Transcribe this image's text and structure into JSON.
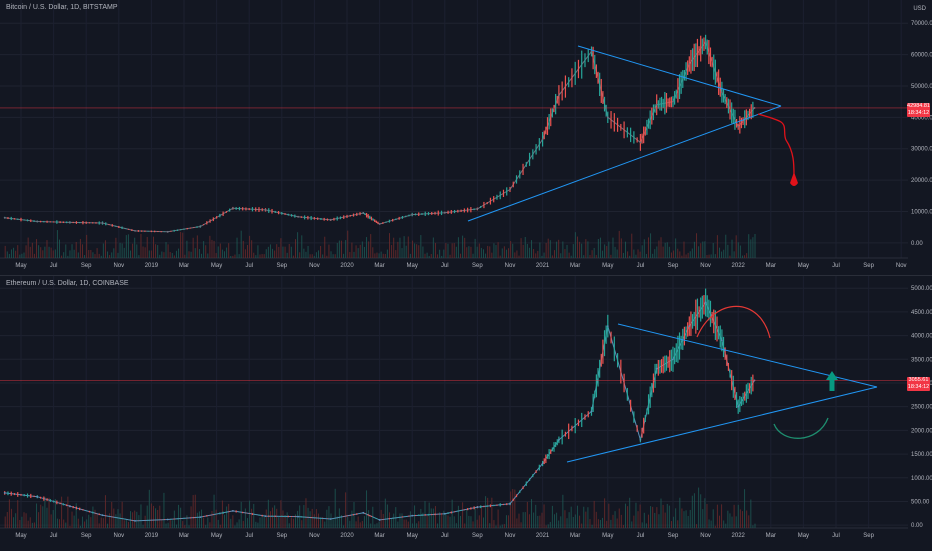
{
  "btc": {
    "title": "Bitcoin / U.S. Dollar, 1D, BITSTAMP",
    "unit": "USD",
    "price_ticks": [
      "70000.00",
      "60000.00",
      "50000.00",
      "40000.00",
      "30000.00",
      "20000.00",
      "10000.00",
      "0.00"
    ],
    "current_price": "42984.81",
    "countdown": "18:34:12",
    "time_labels": [
      "May",
      "Jul",
      "Sep",
      "Nov",
      "2019",
      "Mar",
      "May",
      "Jul",
      "Sep",
      "Nov",
      "2020",
      "Mar",
      "May",
      "Jul",
      "Sep",
      "Nov",
      "2021",
      "Mar",
      "May",
      "Jul",
      "Sep",
      "Nov",
      "2022",
      "Mar",
      "May",
      "Jul",
      "Sep",
      "Nov"
    ],
    "colors": {
      "up": "#26a69a",
      "down": "#ef5350",
      "trend": "#2196f3",
      "drawing": "#e0121a",
      "price_line": "#f23645"
    }
  },
  "eth": {
    "title": "Ethereum / U.S. Dollar, 1D, COINBASE",
    "price_ticks": [
      "5000.00",
      "4500.00",
      "4000.00",
      "3500.00",
      "3000.00",
      "2500.00",
      "2000.00",
      "1500.00",
      "1000.00",
      "500.00",
      "0.00"
    ],
    "current_price": "3055.61",
    "countdown": "18:34:12",
    "time_labels": [
      "May",
      "Jul",
      "Sep",
      "Nov",
      "2019",
      "Mar",
      "May",
      "Jul",
      "Sep",
      "Nov",
      "2020",
      "Mar",
      "May",
      "Jul",
      "Sep",
      "Nov",
      "2021",
      "Mar",
      "May",
      "Jul",
      "Sep",
      "Nov",
      "2022",
      "Mar",
      "May",
      "Jul",
      "Sep"
    ],
    "colors": {
      "up": "#26a69a",
      "down": "#ef5350",
      "trend": "#2196f3",
      "arc": "#e53935",
      "curve": "#1e8e6f",
      "arrow": "#089981",
      "price_line": "#f23645"
    }
  },
  "chart_data": [
    {
      "type": "line",
      "symbol": "BTCUSD",
      "title": "Bitcoin / U.S. Dollar, 1D, BITSTAMP",
      "ylabel": "USD",
      "ylim": [
        -5000,
        75000
      ],
      "grid": true,
      "x": [
        "2018-04",
        "2018-06",
        "2018-08",
        "2018-10",
        "2018-12",
        "2019-02",
        "2019-04",
        "2019-06",
        "2019-08",
        "2019-10",
        "2019-12",
        "2020-02",
        "2020-03",
        "2020-05",
        "2020-07",
        "2020-09",
        "2020-11",
        "2021-01",
        "2021-02",
        "2021-04",
        "2021-05",
        "2021-07",
        "2021-08",
        "2021-09",
        "2021-10",
        "2021-11",
        "2021-12",
        "2022-01",
        "2022-02"
      ],
      "values": [
        8000,
        6800,
        6500,
        6300,
        3800,
        3500,
        5200,
        11000,
        10500,
        8300,
        7300,
        9500,
        6000,
        9000,
        9600,
        10800,
        17000,
        33000,
        47000,
        61000,
        40000,
        32000,
        44000,
        45000,
        57000,
        64000,
        48000,
        37000,
        42984.81
      ],
      "annotations": [
        "symmetrical triangle",
        "projected breakdown path"
      ]
    },
    {
      "type": "line",
      "symbol": "ETHUSD",
      "title": "Ethereum / U.S. Dollar, 1D, COINBASE",
      "ylim": [
        -250,
        5300
      ],
      "grid": true,
      "x": [
        "2018-04",
        "2018-06",
        "2018-08",
        "2018-10",
        "2018-12",
        "2019-02",
        "2019-04",
        "2019-06",
        "2019-08",
        "2019-10",
        "2019-12",
        "2020-02",
        "2020-03",
        "2020-05",
        "2020-07",
        "2020-09",
        "2020-11",
        "2021-01",
        "2021-02",
        "2021-04",
        "2021-05",
        "2021-07",
        "2021-08",
        "2021-09",
        "2021-10",
        "2021-11",
        "2021-12",
        "2022-01",
        "2022-02"
      ],
      "values": [
        680,
        600,
        400,
        210,
        90,
        120,
        170,
        300,
        190,
        180,
        130,
        260,
        110,
        200,
        240,
        380,
        450,
        1300,
        1800,
        2400,
        4200,
        1800,
        3300,
        3500,
        4200,
        4700,
        3900,
        2500,
        3055.61
      ],
      "annotations": [
        "symmetrical triangle",
        "arc over top",
        "rounded bottom",
        "up arrow"
      ]
    }
  ]
}
